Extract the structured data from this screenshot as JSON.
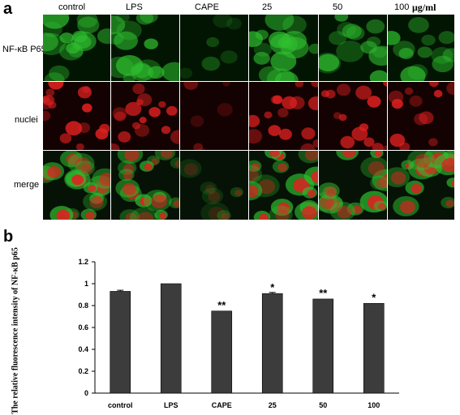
{
  "panel_a": {
    "letter": "a",
    "columns": [
      "control",
      "LPS",
      "CAPE",
      "25",
      "50",
      "100"
    ],
    "unit": "μg/ml",
    "rows": [
      "NF-κB P65",
      "nuclei",
      "merge"
    ]
  },
  "panel_b": {
    "letter": "b"
  },
  "colors": {
    "green_stain": "#2fbf2f",
    "red_stain": "#e02020",
    "bar": "#3c3c3c",
    "background": "#ffffff"
  },
  "chart_data": {
    "type": "bar",
    "categories": [
      "control",
      "LPS",
      "CAPE",
      "25",
      "50",
      "100"
    ],
    "values": [
      0.93,
      1.0,
      0.75,
      0.91,
      0.86,
      0.82
    ],
    "errors": [
      0.01,
      0.0,
      0.0,
      0.01,
      0.0,
      0.0
    ],
    "significance": [
      "",
      "",
      "**",
      "*",
      "**",
      "*"
    ],
    "title": "",
    "xlabel": "",
    "ylabel": "The relative fluorescence intensity of NF-κB p65",
    "ylim": [
      0,
      1.2
    ],
    "yticks": [
      "0",
      "0.2",
      "0.4",
      "0.6",
      "0.8",
      "1",
      "1.2"
    ],
    "grid": false
  }
}
